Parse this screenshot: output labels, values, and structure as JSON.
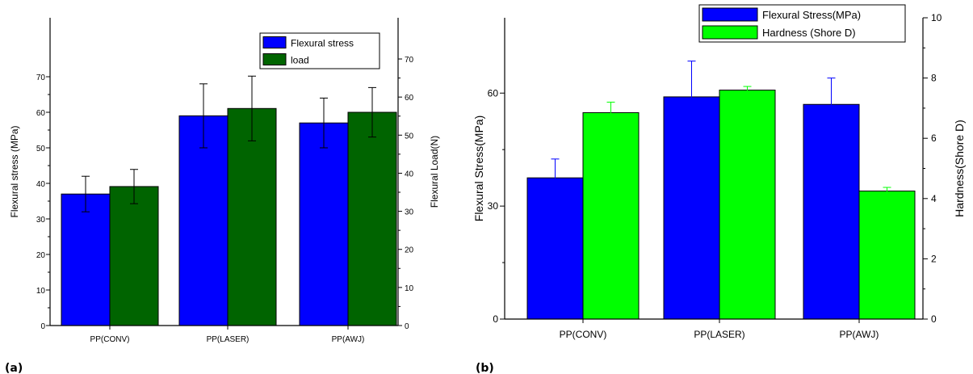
{
  "chart_data": [
    {
      "type": "bar",
      "panel_label": "(a)",
      "categories": [
        "PP(CONV)",
        "PP(LASER)",
        "PP(AWJ)"
      ],
      "ylabel": "Flexural stress (MPa)",
      "y2label": "Flexural Load(N)",
      "ylim": [
        0,
        75
      ],
      "y2lim": [
        0,
        70
      ],
      "yticks": [
        0,
        10,
        20,
        30,
        40,
        50,
        60,
        70
      ],
      "y2ticks": [
        0,
        10,
        20,
        30,
        40,
        50,
        60,
        70
      ],
      "legend_position": "top-right",
      "series": [
        {
          "name": "Flexural stress",
          "axis": "left",
          "color": "#0000ff",
          "values": [
            37,
            59,
            57
          ],
          "errors": [
            5,
            9,
            7
          ]
        },
        {
          "name": "load",
          "axis": "right",
          "color": "#006400",
          "values": [
            36.5,
            57,
            56
          ],
          "errors": [
            4.5,
            8.5,
            6.5
          ]
        }
      ]
    },
    {
      "type": "bar",
      "panel_label": "(b)",
      "categories": [
        "PP(CONV)",
        "PP(LASER)",
        "PP(AWJ)"
      ],
      "ylabel": "Flexural Stress(MPa)",
      "y2label": "Hardness(Shore D)",
      "ylim": [
        0,
        80
      ],
      "y2lim": [
        0,
        10
      ],
      "yticks": [
        0,
        30,
        60
      ],
      "y2ticks": [
        0,
        2,
        4,
        6,
        8,
        10
      ],
      "legend_position": "top-right",
      "series": [
        {
          "name": "Flexural Stress(MPa)",
          "axis": "left",
          "color": "#0000ff",
          "values": [
            37.5,
            59,
            57
          ],
          "errors": [
            5,
            9.5,
            7
          ]
        },
        {
          "name": "Hardness (Shore D)",
          "axis": "right",
          "color": "#00ff00",
          "values": [
            6.85,
            7.6,
            4.25
          ],
          "errors": [
            0.35,
            0.12,
            0.12
          ]
        }
      ]
    }
  ]
}
